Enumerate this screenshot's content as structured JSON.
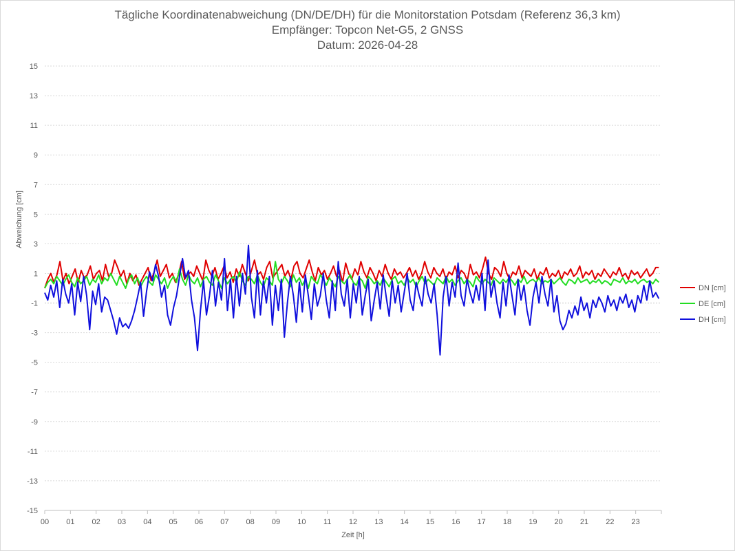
{
  "chart_data": {
    "type": "line",
    "title": "Tägliche Koordinatenabweichung (DN/DE/DH) für die Monitorstation Potsdam (Referenz 36,3 km)",
    "subtitle": "Empfänger: Topcon Net-G5, 2 GNSS",
    "date_line": "Datum: 2026-04-28",
    "xlabel": "Zeit [h]",
    "ylabel": "Abweichung [cm]",
    "xlim": [
      0,
      24
    ],
    "ylim": [
      -15,
      15
    ],
    "x_ticks": [
      "00",
      "01",
      "02",
      "03",
      "04",
      "05",
      "06",
      "07",
      "08",
      "09",
      "10",
      "11",
      "12",
      "13",
      "14",
      "15",
      "16",
      "17",
      "18",
      "19",
      "20",
      "21",
      "22",
      "23"
    ],
    "y_ticks": [
      "15",
      "13",
      "11",
      "9",
      "7",
      "5",
      "3",
      "1",
      "-1",
      "-3",
      "-5",
      "-7",
      "-9",
      "-11",
      "-13",
      "-15"
    ],
    "grid": "horizontal dotted",
    "legend_position": "right",
    "series": [
      {
        "name": "DN [cm]",
        "color": "#e00000",
        "values": [
          0.0,
          0.6,
          1.0,
          0.4,
          0.9,
          1.8,
          0.5,
          1.0,
          0.3,
          0.8,
          1.3,
          0.4,
          1.2,
          0.7,
          0.9,
          1.5,
          0.6,
          1.0,
          1.2,
          0.5,
          1.6,
          0.8,
          1.0,
          1.9,
          1.4,
          0.8,
          1.2,
          0.3,
          1.0,
          0.5,
          0.9,
          0.2,
          0.6,
          1.0,
          1.4,
          0.5,
          1.1,
          1.9,
          0.8,
          1.2,
          1.6,
          0.7,
          1.0,
          0.4,
          0.9,
          1.8,
          0.6,
          0.9,
          1.1,
          0.8,
          1.5,
          1.0,
          0.5,
          1.9,
          1.2,
          0.8,
          1.4,
          0.6,
          1.0,
          1.5,
          0.7,
          1.1,
          0.4,
          1.3,
          0.8,
          1.6,
          1.0,
          0.5,
          1.2,
          1.9,
          0.9,
          1.1,
          0.6,
          1.4,
          1.8,
          0.7,
          1.0,
          1.3,
          1.6,
          0.8,
          1.2,
          0.6,
          1.5,
          1.8,
          1.0,
          0.7,
          1.3,
          1.9,
          1.1,
          0.5,
          1.4,
          0.9,
          1.2,
          0.6,
          1.0,
          1.5,
          0.8,
          1.2,
          0.4,
          1.7,
          1.0,
          0.6,
          1.3,
          0.9,
          1.8,
          1.1,
          0.7,
          1.4,
          1.0,
          0.5,
          1.2,
          0.8,
          1.6,
          1.0,
          0.6,
          1.3,
          0.9,
          1.1,
          0.7,
          1.0,
          1.4,
          0.8,
          1.2,
          0.6,
          1.0,
          1.8,
          1.1,
          0.7,
          1.4,
          1.0,
          0.8,
          1.3,
          0.6,
          1.1,
          0.9,
          1.5,
          0.7,
          1.2,
          1.0,
          0.5,
          1.6,
          0.9,
          1.1,
          0.7,
          1.3,
          2.1,
          1.0,
          0.6,
          1.4,
          1.2,
          0.8,
          1.8,
          1.0,
          0.6,
          1.1,
          0.9,
          1.5,
          0.7,
          1.2,
          1.0,
          0.8,
          1.3,
          0.6,
          1.1,
          0.9,
          1.4,
          0.7,
          1.0,
          0.8,
          1.2,
          0.6,
          1.1,
          0.9,
          1.3,
          0.8,
          1.0,
          1.5,
          0.7,
          1.1,
          0.9,
          1.2,
          0.6,
          1.0,
          0.8,
          1.3,
          1.0,
          0.7,
          1.1,
          0.9,
          1.4,
          0.8,
          1.0,
          0.6,
          1.2,
          0.9,
          1.1,
          0.7,
          1.0,
          1.3,
          0.8,
          1.0,
          1.4,
          1.4
        ]
      },
      {
        "name": "DE [cm]",
        "color": "#22dd22",
        "values": [
          0.0,
          0.4,
          0.6,
          0.3,
          0.8,
          0.5,
          0.2,
          0.6,
          0.9,
          0.4,
          0.1,
          0.7,
          0.3,
          0.5,
          0.8,
          0.2,
          0.6,
          0.4,
          0.9,
          0.3,
          0.7,
          0.5,
          1.0,
          0.6,
          0.2,
          0.8,
          0.4,
          0.0,
          0.6,
          0.9,
          0.3,
          0.7,
          0.1,
          0.5,
          0.8,
          0.4,
          0.2,
          0.9,
          0.6,
          0.3,
          0.7,
          0.0,
          0.5,
          0.8,
          0.4,
          1.3,
          0.6,
          0.2,
          0.9,
          0.5,
          0.3,
          0.7,
          0.1,
          0.6,
          0.8,
          0.4,
          0.2,
          0.9,
          0.5,
          0.0,
          0.7,
          0.3,
          0.6,
          0.8,
          0.4,
          1.1,
          0.5,
          0.2,
          0.8,
          0.6,
          0.3,
          0.9,
          0.4,
          0.1,
          0.7,
          0.5,
          0.2,
          1.8,
          0.6,
          0.3,
          0.8,
          0.5,
          0.1,
          0.9,
          0.4,
          0.7,
          0.2,
          0.6,
          0.0,
          0.8,
          0.5,
          0.3,
          0.9,
          0.6,
          0.2,
          0.7,
          0.4,
          0.1,
          0.8,
          0.5,
          0.3,
          0.6,
          0.9,
          0.4,
          0.2,
          0.7,
          0.5,
          0.0,
          0.8,
          0.6,
          0.3,
          0.5,
          0.2,
          0.7,
          0.4,
          0.1,
          0.6,
          0.8,
          0.3,
          0.5,
          0.2,
          0.7,
          0.4,
          0.6,
          0.1,
          0.5,
          0.8,
          0.3,
          0.6,
          0.4,
          0.2,
          0.7,
          0.5,
          0.3,
          0.8,
          0.4,
          0.6,
          0.2,
          0.5,
          0.7,
          0.3,
          0.6,
          0.4,
          0.1,
          0.8,
          0.5,
          0.3,
          0.6,
          0.4,
          0.2,
          0.7,
          0.5,
          0.3,
          0.6,
          0.4,
          0.7,
          0.5,
          0.2,
          0.6,
          0.4,
          0.8,
          0.3,
          0.5,
          0.6,
          0.4,
          0.7,
          0.3,
          0.5,
          0.4,
          0.6,
          0.3,
          0.5,
          0.7,
          0.4,
          0.2,
          0.6,
          0.5,
          0.3,
          0.7,
          0.4,
          0.5,
          0.6,
          0.3,
          0.5,
          0.4,
          0.6,
          0.3,
          0.5,
          0.4,
          0.2,
          0.6,
          0.5,
          0.4,
          0.7,
          0.3,
          0.5,
          0.4,
          0.6,
          0.3,
          0.5,
          0.6,
          0.4,
          0.5,
          0.3,
          0.6,
          0.4
        ]
      },
      {
        "name": "DH [cm]",
        "color": "#1010dd",
        "values": [
          -0.3,
          -0.8,
          0.2,
          -0.6,
          0.5,
          -1.3,
          0.6,
          -0.4,
          -1.0,
          0.3,
          -1.8,
          0.4,
          -0.9,
          0.8,
          -0.5,
          -2.8,
          -0.2,
          -1.1,
          0.3,
          -1.6,
          -0.6,
          -0.8,
          -1.5,
          -2.2,
          -3.1,
          -2.0,
          -2.6,
          -2.4,
          -2.7,
          -2.2,
          -1.5,
          -0.6,
          0.4,
          -1.9,
          -0.2,
          1.1,
          0.5,
          1.6,
          0.8,
          -0.6,
          0.2,
          -1.8,
          -2.5,
          -1.3,
          -0.5,
          0.8,
          2.0,
          0.7,
          1.2,
          -0.8,
          -2.0,
          -4.2,
          -1.5,
          0.5,
          -1.8,
          -0.5,
          1.2,
          -1.2,
          0.4,
          -0.8,
          2.0,
          -1.5,
          0.6,
          -2.0,
          0.8,
          -1.2,
          1.0,
          -0.4,
          2.9,
          -0.6,
          -2.0,
          1.2,
          -1.8,
          0.5,
          -1.0,
          0.8,
          -2.5,
          0.2,
          -1.5,
          0.6,
          -3.3,
          -1.0,
          0.8,
          -0.5,
          -2.3,
          0.4,
          -1.6,
          0.9,
          -0.5,
          -2.1,
          0.3,
          -1.2,
          -0.5,
          1.0,
          -0.8,
          -2.0,
          0.5,
          -1.5,
          1.8,
          -0.4,
          -1.2,
          0.6,
          -2.0,
          0.3,
          -1.0,
          0.8,
          -1.8,
          -0.5,
          0.6,
          -2.2,
          -0.8,
          0.4,
          -1.4,
          0.9,
          -0.6,
          -1.9,
          0.5,
          -1.0,
          0.2,
          -1.6,
          -0.3,
          1.0,
          -0.8,
          -1.5,
          0.4,
          -0.5,
          -1.2,
          0.8,
          -0.4,
          -1.0,
          0.3,
          -1.8,
          -4.5,
          -0.6,
          0.8,
          -1.2,
          0.4,
          -0.6,
          1.7,
          -0.5,
          -1.2,
          0.6,
          -0.3,
          -1.0,
          0.2,
          -0.8,
          1.0,
          -1.5,
          1.9,
          -0.6,
          0.5,
          -1.0,
          -2.0,
          0.4,
          -1.2,
          0.9,
          -0.5,
          -1.8,
          0.6,
          -0.8,
          0.2,
          -1.5,
          -2.5,
          -0.6,
          0.4,
          -1.0,
          0.8,
          -0.4,
          -1.2,
          0.6,
          -1.6,
          -0.5,
          -2.2,
          -2.8,
          -2.4,
          -1.5,
          -2.0,
          -1.2,
          -1.8,
          -0.6,
          -1.5,
          -1.0,
          -2.0,
          -0.8,
          -1.3,
          -0.6,
          -1.0,
          -1.6,
          -0.5,
          -1.2,
          -0.8,
          -1.5,
          -0.6,
          -1.0,
          -0.4,
          -1.3,
          -0.8,
          -1.6,
          -0.5,
          -1.0,
          0.2,
          -0.8,
          0.5,
          -0.6,
          -0.3,
          -0.7
        ]
      }
    ]
  }
}
